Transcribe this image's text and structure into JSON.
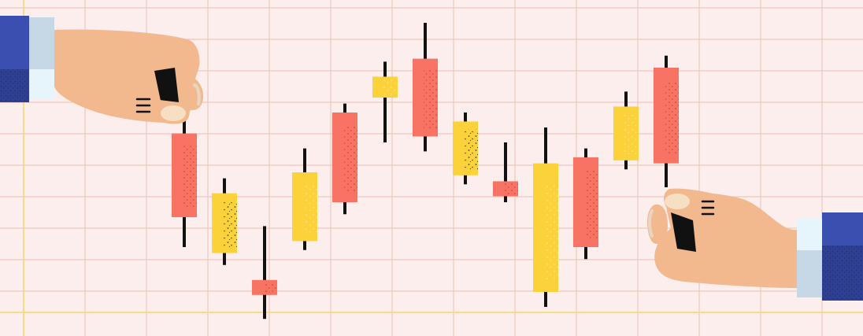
{
  "illustration": {
    "subject": "hands-holding-candlestick-chart",
    "colors": {
      "background": "#fbeeed",
      "grid": "#f1c7bd",
      "grid_accent": "#f8dc8a",
      "red": "#f77364",
      "yellow": "#fcd23a",
      "wick": "#111111",
      "skin": "#f2b98f",
      "sleeve": "#3b4fb0",
      "sleeve_dark": "#27337a",
      "cuff": "#c6d8e6",
      "cuff_light": "#e6f4fb"
    },
    "candles": [
      {
        "color": "red",
        "open": 0.58,
        "close": 0.3,
        "high": 0.66,
        "low": 0.2
      },
      {
        "color": "yellow",
        "open": 0.18,
        "close": 0.38,
        "high": 0.43,
        "low": 0.14
      },
      {
        "color": "red",
        "open": 0.09,
        "close": 0.04,
        "high": 0.27,
        "low": -0.04
      },
      {
        "color": "yellow",
        "open": 0.22,
        "close": 0.45,
        "high": 0.53,
        "low": 0.19
      },
      {
        "color": "red",
        "open": 0.65,
        "close": 0.35,
        "high": 0.68,
        "low": 0.31
      },
      {
        "color": "yellow",
        "open": 0.7,
        "close": 0.77,
        "high": 0.82,
        "low": 0.55
      },
      {
        "color": "red",
        "open": 0.83,
        "close": 0.57,
        "high": 0.95,
        "low": 0.52
      },
      {
        "color": "yellow",
        "open": 0.44,
        "close": 0.62,
        "high": 0.65,
        "low": 0.41
      },
      {
        "color": "red",
        "open": 0.42,
        "close": 0.37,
        "high": 0.55,
        "low": 0.35
      },
      {
        "color": "yellow",
        "open": 0.05,
        "close": 0.48,
        "high": 0.6,
        "low": 0.0
      },
      {
        "color": "red",
        "open": 0.5,
        "close": 0.2,
        "high": 0.53,
        "low": 0.16
      },
      {
        "color": "yellow",
        "open": 0.49,
        "close": 0.67,
        "high": 0.72,
        "low": 0.46
      },
      {
        "color": "red",
        "open": 0.8,
        "close": 0.48,
        "high": 0.84,
        "low": 0.4
      }
    ]
  }
}
